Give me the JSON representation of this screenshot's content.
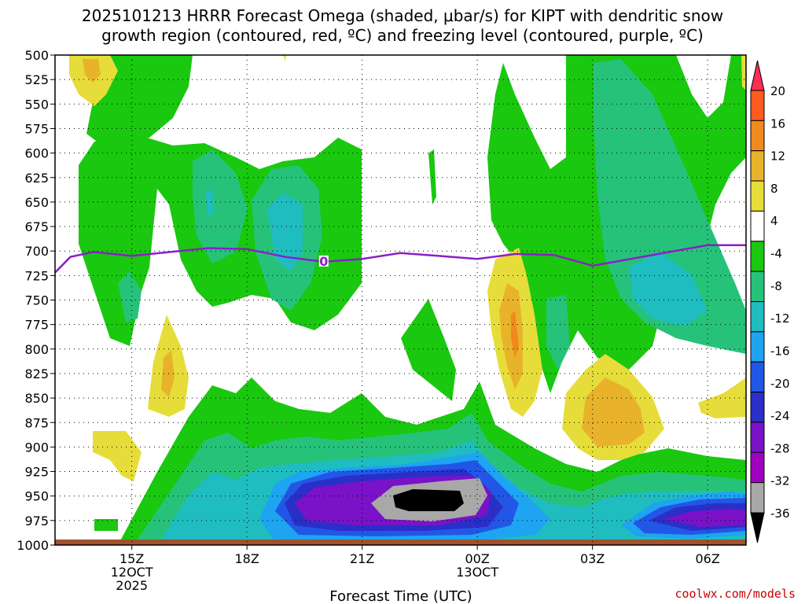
{
  "chart_data": {
    "type": "heatmap",
    "title_line1": "2025101213 HRRR Forecast Omega (shaded, μbar/s) for KIPT with dendritic snow",
    "title_line2": "growth region (contoured, red, ºC) and freezing level (contoured, purple, ºC)",
    "xlabel": "Forecast Time (UTC)",
    "y_ticks": [
      500,
      525,
      550,
      575,
      600,
      625,
      650,
      675,
      700,
      725,
      750,
      775,
      800,
      825,
      850,
      875,
      900,
      925,
      950,
      975,
      1000
    ],
    "x_ticks": [
      {
        "hour": 2,
        "line1": "15Z",
        "line2": "12OCT",
        "line3": "2025"
      },
      {
        "hour": 5,
        "line1": "18Z",
        "line2": "",
        "line3": ""
      },
      {
        "hour": 8,
        "line1": "21Z",
        "line2": "",
        "line3": ""
      },
      {
        "hour": 11,
        "line1": "00Z",
        "line2": "13OCT",
        "line3": ""
      },
      {
        "hour": 14,
        "line1": "03Z",
        "line2": "",
        "line3": ""
      },
      {
        "hour": 17,
        "line1": "06Z",
        "line2": "",
        "line3": ""
      }
    ],
    "x_range": [
      0,
      18
    ],
    "colorbar_labels": [
      "20",
      "16",
      "12",
      "8",
      "4",
      "-4",
      "-8",
      "-12",
      "-16",
      "-20",
      "-24",
      "-28",
      "-32",
      "-36"
    ],
    "colorbar_colors": [
      "#ff2d55",
      "#ff5a1f",
      "#f08a1d",
      "#e8b32a",
      "#e6dd3a",
      "#ffffff",
      "#19c80f",
      "#27c27a",
      "#1fbcc0",
      "#1ea4f0",
      "#2256e6",
      "#2a2fc8",
      "#7a12c8",
      "#a000c0",
      "#a8a8a8",
      "#000000"
    ],
    "freezing_level_label": "0",
    "freezing_level": {
      "x": [
        0,
        0.4,
        1,
        1.5,
        2,
        2.5,
        3,
        4,
        5,
        6,
        7,
        8,
        9,
        10,
        11,
        12,
        13,
        14,
        15,
        16,
        17,
        18
      ],
      "p": [
        722,
        706,
        701,
        703,
        705,
        703,
        701,
        697,
        698,
        706,
        711,
        708,
        702,
        705,
        708,
        703,
        704,
        715,
        708,
        701,
        694,
        694
      ]
    },
    "credit": "coolwx.com/models"
  }
}
